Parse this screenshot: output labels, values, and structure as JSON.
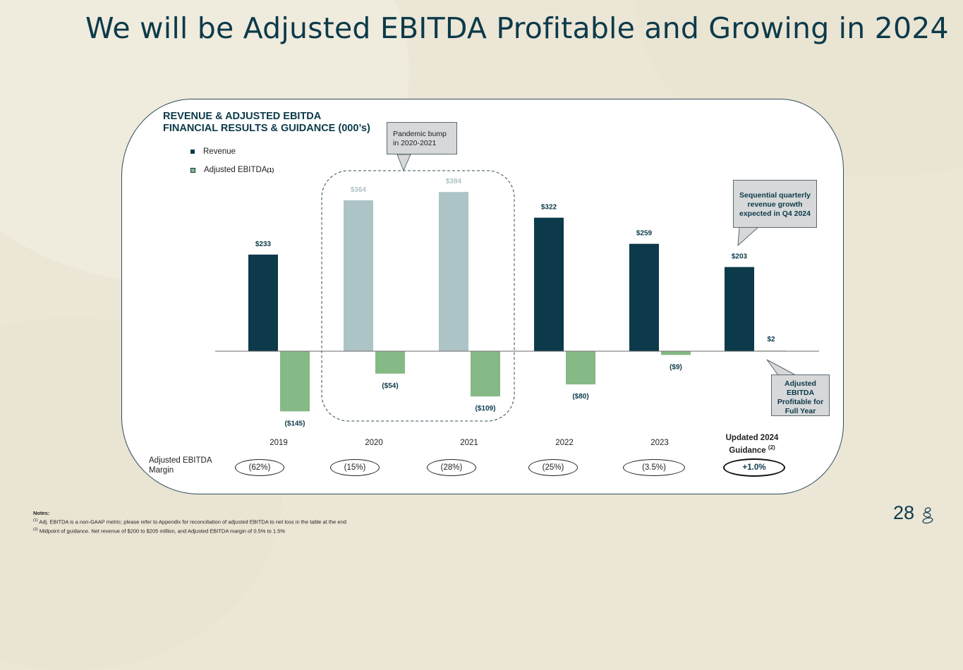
{
  "slide": {
    "title": "We will be Adjusted EBITDA Profitable and Growing in 2024",
    "page_number": "28",
    "logo_icon": "stacked-stones-logo-icon"
  },
  "chart_data": {
    "type": "bar",
    "title_line1": "REVENUE & ADJUSTED EBITDA",
    "title_line2": "FINANCIAL RESULTS & GUIDANCE (000’s)",
    "categories": [
      "2019",
      "2020",
      "2021",
      "2022",
      "2023",
      "Updated 2024 Guidance"
    ],
    "series": [
      {
        "name": "Revenue",
        "color": "#0c3a4a",
        "highlight_color": "#adc4c7",
        "values": [
          233,
          364,
          384,
          322,
          259,
          203
        ],
        "labels": [
          "$233",
          "$364",
          "$384",
          "$322",
          "$259",
          "$203"
        ],
        "highlighted": [
          false,
          true,
          true,
          false,
          false,
          false
        ]
      },
      {
        "name": "Adjusted EBITDA",
        "name_superscript": "(1)",
        "color": "#85b985",
        "values": [
          -145,
          -54,
          -109,
          -80,
          -9,
          2
        ],
        "labels": [
          "($145)",
          "($54)",
          "($109)",
          "($80)",
          "($9)",
          "$2"
        ]
      }
    ],
    "ylim": [
      -150,
      400
    ],
    "grid": false,
    "legend_position": "top-left",
    "axis_labels": {
      "years": [
        "2019",
        "2020",
        "2021",
        "2022",
        "2023"
      ],
      "guidance_line1": "Updated 2024",
      "guidance_line2": "Guidance",
      "guidance_superscript": "(2)"
    },
    "margin_row": {
      "label_line1": "Adjusted EBITDA",
      "label_line2": "Margin",
      "values": [
        "(62%)",
        "(15%)",
        "(28%)",
        "(25%)",
        "(3.5%)",
        "+1.0%"
      ]
    },
    "annotations": {
      "pandemic": "Pandemic bump in 2020-2021",
      "pandemic_line1": "Pandemic bump",
      "pandemic_line2": "in 2020-2021",
      "growth_line1": "Sequential quarterly",
      "growth_line2": "revenue growth",
      "growth_line3": "expected in Q4 2024",
      "profitable_line1": "Adjusted",
      "profitable_line2": "EBITDA",
      "profitable_line3": "Profitable for",
      "profitable_line4": "Full Year"
    }
  },
  "notes": {
    "heading": "Notes:",
    "items": [
      {
        "marker": "(1)",
        "text": "Adj. EBITDA is a non-GAAP metric; please refer to Appendix for reconciliation of adjusted EBITDA to net loss in the table at the end"
      },
      {
        "marker": "(2)",
        "text": "Midpoint of guidance. Net revenue of $200 to $205 million, and Adjusted EBITDA margin of 0.5% to 1.5%"
      }
    ]
  }
}
